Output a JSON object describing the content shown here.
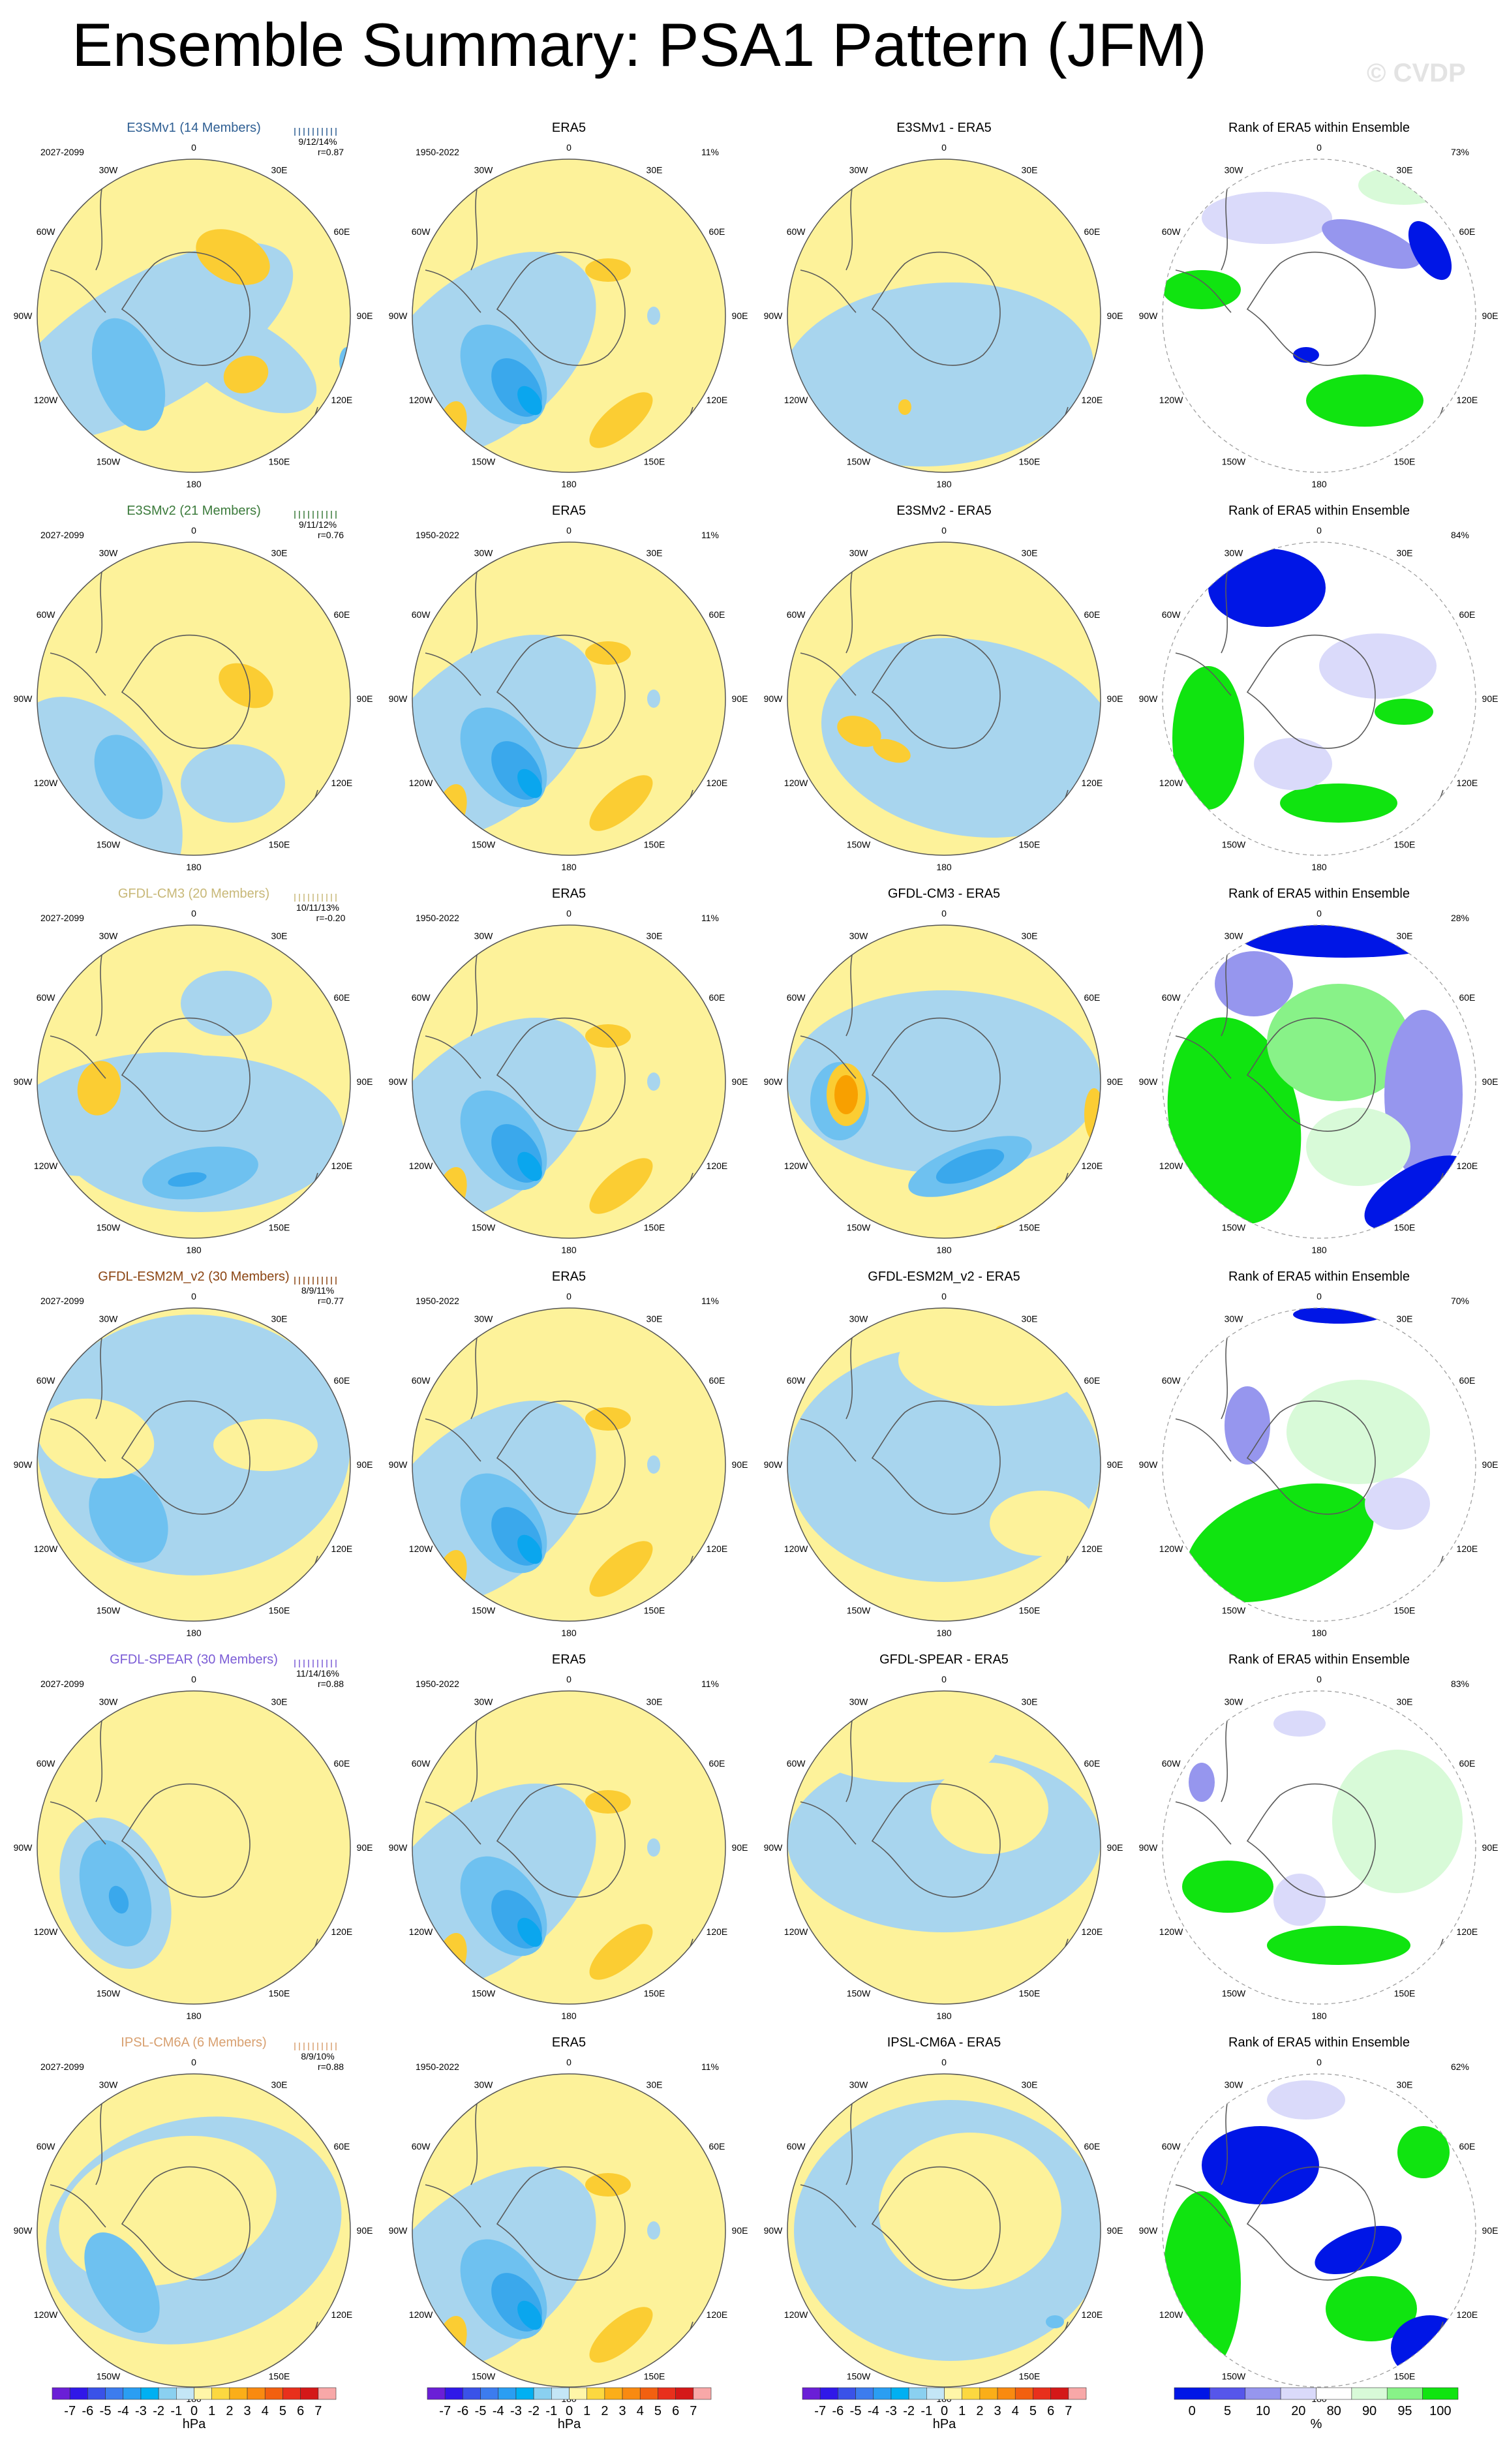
{
  "title": "Ensemble Summary: PSA1 Pattern (JFM)",
  "watermark": "© CVDP",
  "colors": {
    "blue_1": "#a8d5ee",
    "blue_2": "#6ec1f0",
    "blue_3": "#3aa8ec",
    "blue_4": "#0aa6ee",
    "yellow_1": "#fdf29a",
    "orange_1": "#fbcd33",
    "orange_2": "#f8a000",
    "rank_blue_dark": "#0016e6",
    "rank_blue_mid": "#9696ee",
    "rank_blue_light": "#dadafa",
    "rank_green_light": "#d8fad8",
    "rank_green_mid": "#88f288",
    "rank_green_dark": "#10e410"
  },
  "lon_labels": [
    "0",
    "30E",
    "60E",
    "90E",
    "120E",
    "150E",
    "180",
    "150W",
    "120W",
    "90W",
    "60W",
    "30W"
  ],
  "rows": [
    {
      "model": {
        "title": "E3SMv1 (14 Members)",
        "title_color": "#2f5f93",
        "period": "2027-2099",
        "stats": "9/12/14%",
        "corr": "r=0.87",
        "blob": 0
      },
      "era5": {
        "title": "ERA5",
        "period": "1950-2022",
        "pct": "11%"
      },
      "diff": {
        "title": "E3SMv1 - ERA5",
        "blob": 0
      },
      "rank": {
        "title": "Rank of ERA5 within Ensemble",
        "pct": "73%",
        "blob": 0
      }
    },
    {
      "model": {
        "title": "E3SMv2 (21 Members)",
        "title_color": "#3b7a3b",
        "period": "2027-2099",
        "stats": "9/11/12%",
        "corr": "r=0.76",
        "blob": 1
      },
      "era5": {
        "title": "ERA5",
        "period": "1950-2022",
        "pct": "11%"
      },
      "diff": {
        "title": "E3SMv2 - ERA5",
        "blob": 1
      },
      "rank": {
        "title": "Rank of ERA5 within Ensemble",
        "pct": "84%",
        "blob": 1
      }
    },
    {
      "model": {
        "title": "GFDL-CM3 (20 Members)",
        "title_color": "#c8b878",
        "period": "2027-2099",
        "stats": "10/11/13%",
        "corr": "r=-0.20",
        "blob": 2
      },
      "era5": {
        "title": "ERA5",
        "period": "1950-2022",
        "pct": "11%"
      },
      "diff": {
        "title": "GFDL-CM3 - ERA5",
        "blob": 2
      },
      "rank": {
        "title": "Rank of ERA5 within Ensemble",
        "pct": "28%",
        "blob": 2
      }
    },
    {
      "model": {
        "title": "GFDL-ESM2M_v2 (30 Members)",
        "title_color": "#8b4513",
        "period": "2027-2099",
        "stats": "8/9/11%",
        "corr": "r=0.77",
        "blob": 3
      },
      "era5": {
        "title": "ERA5",
        "period": "1950-2022",
        "pct": "11%"
      },
      "diff": {
        "title": "GFDL-ESM2M_v2 - ERA5",
        "blob": 3
      },
      "rank": {
        "title": "Rank of ERA5 within Ensemble",
        "pct": "70%",
        "blob": 3
      }
    },
    {
      "model": {
        "title": "GFDL-SPEAR (30 Members)",
        "title_color": "#7b5cd6",
        "period": "2027-2099",
        "stats": "11/14/16%",
        "corr": "r=0.88",
        "blob": 4
      },
      "era5": {
        "title": "ERA5",
        "period": "1950-2022",
        "pct": "11%"
      },
      "diff": {
        "title": "GFDL-SPEAR - ERA5",
        "blob": 4
      },
      "rank": {
        "title": "Rank of ERA5 within Ensemble",
        "pct": "83%",
        "blob": 4
      }
    },
    {
      "model": {
        "title": "IPSL-CM6A (6 Members)",
        "title_color": "#d8a070",
        "period": "2027-2099",
        "stats": "8/9/10%",
        "corr": "r=0.88",
        "blob": 5
      },
      "era5": {
        "title": "ERA5",
        "period": "1950-2022",
        "pct": "11%"
      },
      "diff": {
        "title": "IPSL-CM6A - ERA5",
        "blob": 5
      },
      "rank": {
        "title": "Rank of ERA5 within Ensemble",
        "pct": "62%",
        "blob": 5
      }
    }
  ],
  "colorbar_hpa": {
    "labels": [
      "-7",
      "-6",
      "-5",
      "-4",
      "-3",
      "-2",
      "-1",
      "0",
      "1",
      "2",
      "3",
      "4",
      "5",
      "6",
      "7"
    ],
    "colors": [
      "#6a1fd6",
      "#3018e8",
      "#3a52e8",
      "#3c7cee",
      "#2a9ef2",
      "#00b0f2",
      "#8ad0f0",
      "#c4e6f6",
      "#fff6a8",
      "#fcd840",
      "#fbae18",
      "#f98a10",
      "#f26010",
      "#e8301c",
      "#d41818",
      "#f8a8a8"
    ],
    "unit": "hPa"
  },
  "colorbar_rank": {
    "labels": [
      "0",
      "5",
      "10",
      "20",
      "80",
      "90",
      "95",
      "100"
    ],
    "colors": [
      "#0016e6",
      "#5656ea",
      "#9696ee",
      "#dadafa",
      "#ffffff",
      "#d8fad8",
      "#88f288",
      "#10e410"
    ],
    "unit": "%"
  }
}
